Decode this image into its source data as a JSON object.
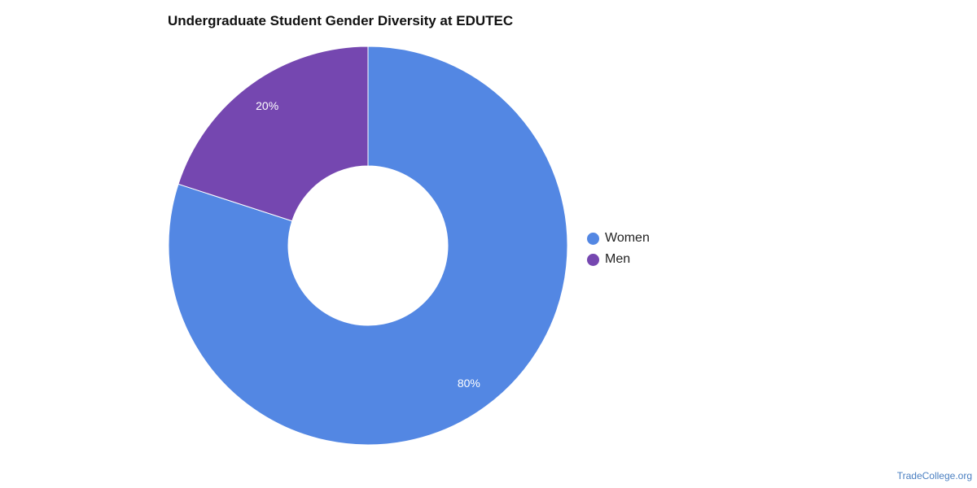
{
  "chart_data": {
    "type": "pie",
    "variant": "donut",
    "title": "Undergraduate Student Gender Diversity at EDUTEC",
    "categories": [
      "Women",
      "Men"
    ],
    "values": [
      80,
      20
    ],
    "labels": [
      "80%",
      "20%"
    ],
    "colors": [
      "#5387e3",
      "#7547b0"
    ],
    "legend_position": "right",
    "label_color": "#ffffff"
  },
  "source": "TradeCollege.org"
}
